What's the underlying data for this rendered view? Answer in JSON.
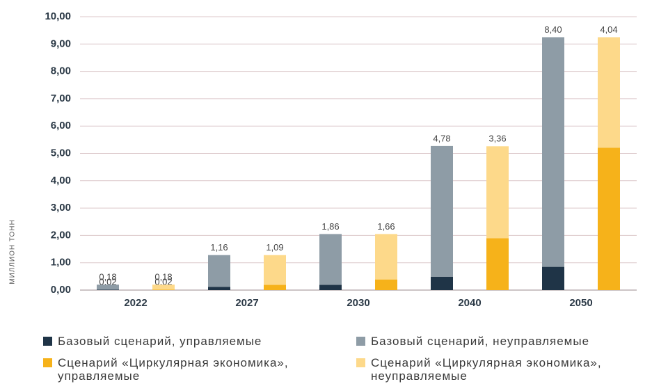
{
  "chart_data": {
    "type": "stacked_grouped_bar",
    "y_label": "МИЛЛИОН ТОНН",
    "categories": [
      "2022",
      "2027",
      "2030",
      "2040",
      "2050"
    ],
    "series": [
      {
        "name": "Базовый сценарий, управляемые",
        "color": "#1f3447",
        "stack": "base",
        "values": [
          0.02,
          0.12,
          0.19,
          0.49,
          0.85
        ],
        "value_labels": [
          "0,02",
          "0,12",
          "0,19",
          "0,49",
          "0,85"
        ]
      },
      {
        "name": "Базовый сценарий, неуправляемые",
        "color": "#8e9ca6",
        "stack": "base",
        "values": [
          0.18,
          1.16,
          1.86,
          4.78,
          8.4
        ],
        "value_labels": [
          "0,18",
          "1,16",
          "1,86",
          "4,78",
          "8,40"
        ]
      },
      {
        "name": "Сценарий «Циркулярная экономика», управляемые",
        "color": "#f6b21a",
        "stack": "circular",
        "values": [
          0.02,
          0.19,
          0.39,
          1.9,
          5.21
        ],
        "value_labels": [
          "0,02",
          "0,19",
          "0,39",
          "1,90",
          "5,21"
        ]
      },
      {
        "name": "Сценарий «Циркулярная экономика», неуправляемые",
        "color": "#fdd98a",
        "stack": "circular",
        "values": [
          0.18,
          1.09,
          1.66,
          3.36,
          4.04
        ],
        "value_labels": [
          "0,18",
          "1,09",
          "1,66",
          "3,36",
          "4,04"
        ]
      }
    ],
    "ylim": [
      0,
      10
    ],
    "yticks": [
      {
        "value": 0,
        "label": "0,00"
      },
      {
        "value": 1,
        "label": "1,00"
      },
      {
        "value": 2,
        "label": "2,00"
      },
      {
        "value": 3,
        "label": "3,00"
      },
      {
        "value": 4,
        "label": "4,00"
      },
      {
        "value": 5,
        "label": "5,00"
      },
      {
        "value": 6,
        "label": "6,00"
      },
      {
        "value": 7,
        "label": "7,00"
      },
      {
        "value": 8,
        "label": "8,00"
      },
      {
        "value": 9,
        "label": "9,00"
      },
      {
        "value": 10,
        "label": "10,00"
      }
    ],
    "grid": true
  }
}
